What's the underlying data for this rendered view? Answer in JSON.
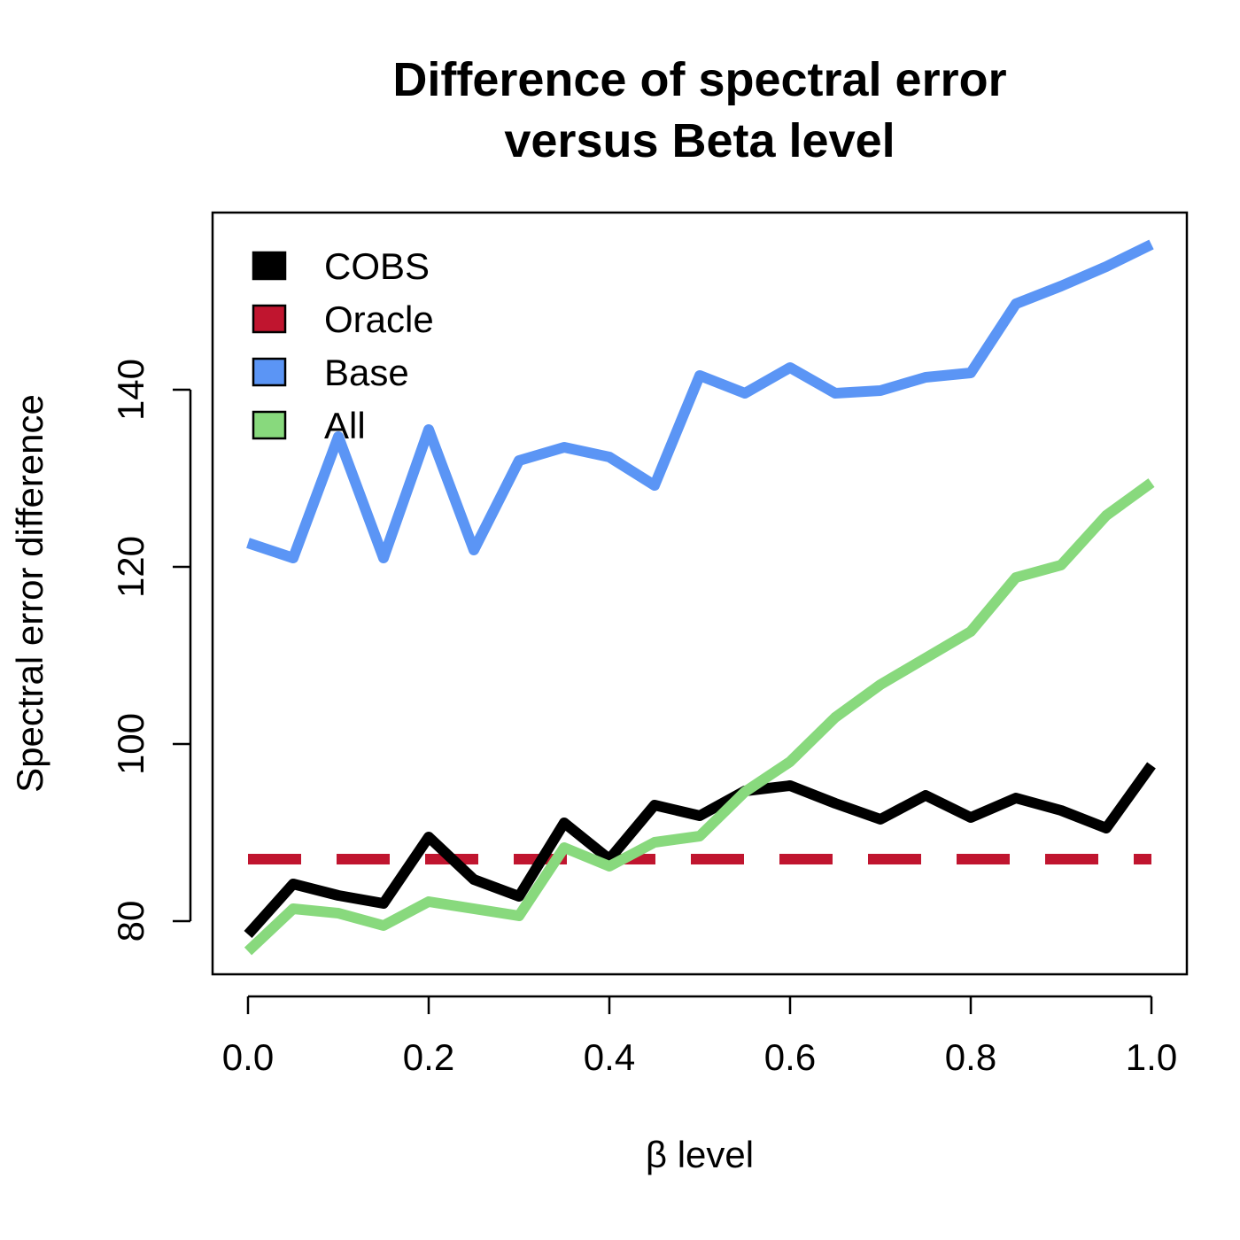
{
  "chart_data": {
    "type": "line",
    "title": [
      "Difference of spectral error",
      "versus Beta level"
    ],
    "xlabel": "β level",
    "ylabel": "Spectral error difference",
    "xlim": [
      0.0,
      1.0
    ],
    "ylim": [
      74,
      160
    ],
    "x_ticks": [
      0.0,
      0.2,
      0.4,
      0.6,
      0.8,
      1.0
    ],
    "x_tick_labels": [
      "0.0",
      "0.2",
      "0.4",
      "0.6",
      "0.8",
      "1.0"
    ],
    "y_ticks": [
      80,
      100,
      120,
      140
    ],
    "y_tick_labels": [
      "80",
      "100",
      "120",
      "140"
    ],
    "grid": false,
    "legend_position": "top-left",
    "x": [
      0.0,
      0.05,
      0.1,
      0.15,
      0.2,
      0.25,
      0.3,
      0.35,
      0.4,
      0.45,
      0.5,
      0.55,
      0.6,
      0.65,
      0.7,
      0.75,
      0.8,
      0.85,
      0.9,
      0.95,
      1.0
    ],
    "series": [
      {
        "name": "COBS",
        "color": "#000000",
        "dashed": false,
        "values": [
          78.5,
          84.2,
          82.9,
          82.0,
          89.5,
          84.7,
          82.8,
          91.1,
          87.0,
          93.1,
          91.9,
          94.7,
          95.3,
          93.3,
          91.5,
          94.2,
          91.7,
          93.9,
          92.5,
          90.5,
          97.6
        ]
      },
      {
        "name": "Oracle",
        "color": "#C0152F",
        "dashed": true,
        "values": [
          87.0,
          87.0,
          87.0,
          87.0,
          87.0,
          87.0,
          87.0,
          87.0,
          87.0,
          87.0,
          87.0,
          87.0,
          87.0,
          87.0,
          87.0,
          87.0,
          87.0,
          87.0,
          87.0,
          87.0,
          87.0
        ]
      },
      {
        "name": "Base",
        "color": "#5B95F5",
        "dashed": false,
        "values": [
          122.7,
          121.0,
          134.7,
          121.0,
          135.5,
          121.9,
          132.0,
          133.5,
          132.4,
          129.2,
          141.6,
          139.6,
          142.5,
          139.6,
          139.9,
          141.4,
          141.9,
          149.7,
          151.7,
          153.9,
          156.4
        ]
      },
      {
        "name": "All",
        "color": "#88D97D",
        "dashed": false,
        "values": [
          76.6,
          81.4,
          80.9,
          79.5,
          82.2,
          81.4,
          80.6,
          88.3,
          86.2,
          88.9,
          89.6,
          94.6,
          98.0,
          103.0,
          106.7,
          109.7,
          112.7,
          118.8,
          120.2,
          125.8,
          129.5
        ]
      }
    ]
  }
}
